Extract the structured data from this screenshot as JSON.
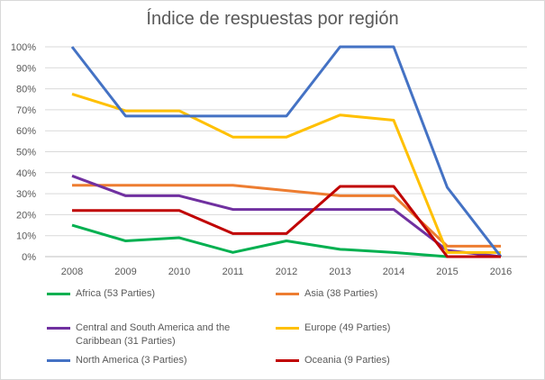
{
  "chart_data": {
    "type": "line",
    "title": "Índice de respuestas por región",
    "categories": [
      "2008",
      "2009",
      "2010",
      "2011",
      "2012",
      "2013",
      "2014",
      "2015",
      "2016"
    ],
    "ylim": [
      0,
      100
    ],
    "yticks": [
      "0%",
      "10%",
      "20%",
      "30%",
      "40%",
      "50%",
      "60%",
      "70%",
      "80%",
      "90%",
      "100%"
    ],
    "grid": true,
    "legend_position": "bottom",
    "series": [
      {
        "name": "Africa (53 Parties)",
        "color": "#00b050",
        "values": [
          15,
          7.5,
          9,
          2,
          7.5,
          3.5,
          2,
          0,
          0
        ]
      },
      {
        "name": "Asia (38 Parties)",
        "color": "#ed7d31",
        "values": [
          34,
          34,
          34,
          34,
          31.5,
          29,
          29,
          5,
          5
        ]
      },
      {
        "name": "Central and South America and the Caribbean (31 Parties)",
        "color": "#7030a0",
        "values": [
          38.5,
          29,
          29,
          22.5,
          22.5,
          22.5,
          22.5,
          3,
          0
        ]
      },
      {
        "name": "Europe (49 Parties)",
        "color": "#ffc000",
        "values": [
          77.5,
          69.5,
          69.5,
          57,
          57,
          67.5,
          65,
          2,
          2
        ]
      },
      {
        "name": "North America (3 Parties)",
        "color": "#4472c4",
        "values": [
          100,
          67,
          67,
          67,
          67,
          100,
          100,
          33,
          0
        ]
      },
      {
        "name": "Oceania (9 Parties)",
        "color": "#c00000",
        "values": [
          22,
          22,
          22,
          11,
          11,
          33.5,
          33.5,
          0,
          0
        ]
      }
    ]
  }
}
